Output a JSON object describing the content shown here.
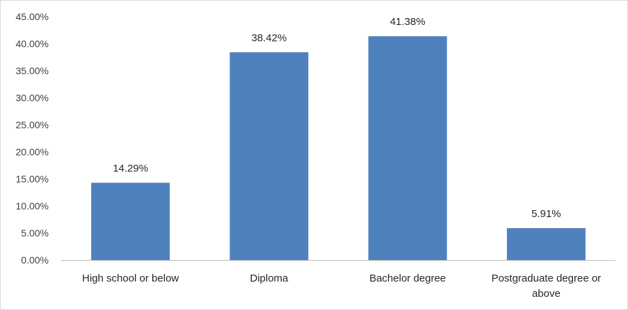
{
  "chart_data": {
    "type": "bar",
    "categories": [
      [
        "High school or below"
      ],
      [
        "Diploma"
      ],
      [
        "Bachelor degree"
      ],
      [
        "Postgraduate degree or",
        "above"
      ]
    ],
    "values": [
      14.29,
      38.42,
      41.38,
      5.91
    ],
    "data_labels": [
      "14.29%",
      "38.42%",
      "41.38%",
      "5.91%"
    ],
    "y_ticks": [
      "0.00%",
      "5.00%",
      "10.00%",
      "15.00%",
      "20.00%",
      "25.00%",
      "30.00%",
      "35.00%",
      "40.00%",
      "45.00%"
    ],
    "ylim": [
      0,
      45
    ],
    "y_step": 5,
    "grid": false,
    "legend": "none",
    "bar_color": "#4f81bd",
    "axis_color": "#bfbfbf"
  }
}
